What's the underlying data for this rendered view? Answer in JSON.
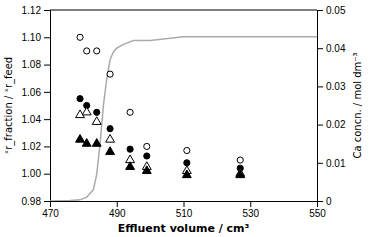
{
  "chart_data": {
    "type": "scatter",
    "xlabel": "Effluent volume / cm³",
    "ylabel": "ˣr_fraction / ˣr_feed",
    "y2label": "Ca concn. / mol dm⁻³",
    "xlim": [
      470,
      550
    ],
    "xticks": [
      470,
      490,
      510,
      530,
      550
    ],
    "ylim": [
      0.98,
      1.12
    ],
    "yticks": [
      0.98,
      {
        "value": 1.0,
        "label": "1.00"
      },
      1.02,
      1.04,
      1.06,
      1.08,
      {
        "value": 1.1,
        "label": "1.10"
      },
      1.12
    ],
    "y2lim": [
      0,
      0.05
    ],
    "y2ticks": [
      0,
      0.01,
      0.02,
      0.03,
      0.04,
      0.05
    ],
    "series": [
      {
        "type": "line",
        "axis": "y2",
        "color": "#aaaaaa",
        "line_style": "solid",
        "x": [
          470,
          476,
          479,
          481,
          483,
          484,
          485,
          486,
          487,
          488,
          489,
          490,
          492,
          495,
          500,
          510,
          520,
          530,
          540,
          550
        ],
        "values": [
          0.0,
          0.0001,
          0.0003,
          0.001,
          0.003,
          0.007,
          0.015,
          0.025,
          0.032,
          0.037,
          0.039,
          0.04,
          0.041,
          0.042,
          0.042,
          0.043,
          0.043,
          0.043,
          0.043,
          0.043
        ]
      },
      {
        "type": "scatter",
        "marker": "open-circle",
        "color": "#000000",
        "x": [
          479,
          481,
          484,
          488,
          494,
          499,
          511,
          527
        ],
        "values": [
          1.1,
          1.09,
          1.09,
          1.073,
          1.045,
          1.02,
          1.017,
          1.01
        ]
      },
      {
        "type": "scatter",
        "marker": "circle",
        "color": "#000000",
        "x": [
          479,
          481,
          484,
          488,
          494,
          499,
          511,
          527
        ],
        "values": [
          1.055,
          1.05,
          1.045,
          1.033,
          1.018,
          1.013,
          1.008,
          1.004
        ]
      },
      {
        "type": "scatter",
        "marker": "open-triangle",
        "color": "#000000",
        "x": [
          479,
          481,
          484,
          488,
          494,
          499,
          511,
          527
        ],
        "values": [
          1.043,
          1.045,
          1.038,
          1.025,
          1.01,
          1.005,
          1.002,
          1.0
        ]
      },
      {
        "type": "scatter",
        "marker": "triangle",
        "color": "#000000",
        "x": [
          479,
          481,
          484,
          488,
          494,
          499,
          511,
          527
        ],
        "values": [
          1.025,
          1.022,
          1.022,
          1.016,
          1.005,
          1.002,
          0.999,
          0.999
        ]
      }
    ]
  }
}
